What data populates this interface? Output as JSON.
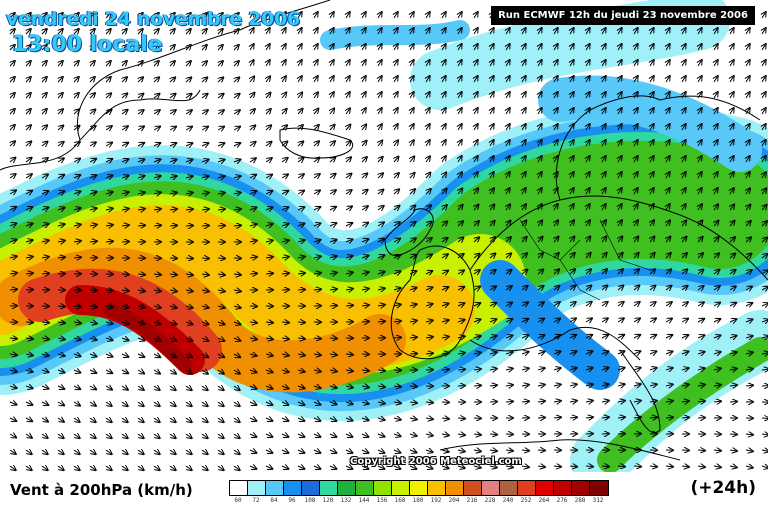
{
  "header": {
    "date_title": "vendredi 24 novembre 2006",
    "time_title": "13:00 locale",
    "run_label": "Run ECMWF 12h du jeudi 23 novembre 2006"
  },
  "map": {
    "copyright": "Copyright 2006 Meteociel.com"
  },
  "footer": {
    "variable_label": "Vent à 200hPa (km/h)",
    "forecast_hour": "(+24h)"
  },
  "legend": {
    "colors": [
      "#ffffff",
      "#a0f0f8",
      "#58c8f8",
      "#1890f0",
      "#1c6cd8",
      "#30d8a0",
      "#20b040",
      "#40c020",
      "#90e000",
      "#c8f000",
      "#f0f000",
      "#f8c000",
      "#f09000",
      "#d05020",
      "#e08080",
      "#b06040",
      "#e04020",
      "#e00000",
      "#c00000",
      "#a00000",
      "#800000"
    ],
    "values": [
      "60",
      "72",
      "84",
      "96",
      "108",
      "120",
      "132",
      "144",
      "156",
      "168",
      "180",
      "192",
      "204",
      "216",
      "228",
      "240",
      "252",
      "264",
      "276",
      "288",
      "312"
    ]
  }
}
